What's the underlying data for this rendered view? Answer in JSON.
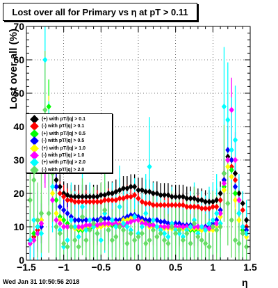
{
  "title": "Lost over all for Primary vs   η at pT > 0.11",
  "ylabel": "Lost over all (%)",
  "xlabel": "η",
  "timestamp": "Wed Jan 31 10:50:56 2018",
  "legend": [
    {
      "label": "(+) with pT/|q| > 0.1",
      "color": "#000000"
    },
    {
      "label": "(-) with pT/|q| > 0.1",
      "color": "#ff0000"
    },
    {
      "label": "(+) with pT/|q| > 0.5",
      "color": "#00ff00"
    },
    {
      "label": "(-) with pT/|q| > 0.5",
      "color": "#0000ff"
    },
    {
      "label": "(+) with pT/|q| > 1.0",
      "color": "#ffff00"
    },
    {
      "label": "(-) with pT/|q| > 1.0",
      "color": "#ff00ff"
    },
    {
      "label": "(+) with pT/|q| > 2.0",
      "color": "#00ffff"
    },
    {
      "label": "(-) with pT/|q| > 2.0",
      "color": "#66dd66"
    }
  ],
  "chart_data": {
    "type": "scatter",
    "title": "Lost over all for Primary vs   η at pT > 0.11",
    "xlabel": "η",
    "ylabel": "Lost over all (%)",
    "xlim": [
      -1.5,
      1.5
    ],
    "ylim": [
      0,
      70
    ],
    "xticks": [
      -1.5,
      -1,
      -0.5,
      0,
      0.5,
      1,
      1.5
    ],
    "xtick_labels": [
      "−1.5",
      "−1",
      "−0.5",
      "0",
      "0.5",
      "1",
      "1.5"
    ],
    "yticks": [
      0,
      10,
      20,
      30,
      40,
      50,
      60,
      70
    ],
    "ytick_labels": [
      "0",
      "10",
      "20",
      "30",
      "40",
      "50",
      "60",
      "70"
    ],
    "grid": true,
    "legend_position": "left-middle",
    "x": [
      -1.45,
      -1.4,
      -1.35,
      -1.3,
      -1.25,
      -1.2,
      -1.15,
      -1.1,
      -1.05,
      -1.0,
      -0.95,
      -0.9,
      -0.85,
      -0.8,
      -0.75,
      -0.7,
      -0.65,
      -0.6,
      -0.55,
      -0.5,
      -0.45,
      -0.4,
      -0.35,
      -0.3,
      -0.25,
      -0.2,
      -0.15,
      -0.1,
      -0.05,
      0.0,
      0.05,
      0.1,
      0.15,
      0.2,
      0.25,
      0.3,
      0.35,
      0.4,
      0.45,
      0.5,
      0.55,
      0.6,
      0.65,
      0.7,
      0.75,
      0.8,
      0.85,
      0.9,
      0.95,
      1.0,
      1.05,
      1.1,
      1.15,
      1.2,
      1.25,
      1.3,
      1.35,
      1.4,
      1.45
    ],
    "series": [
      {
        "name": "(+) with pT/|q| > 0.1",
        "color": "#000000",
        "error_scale": 0.6,
        "values": [
          6,
          7,
          9,
          12,
          38,
          42,
          30,
          24,
          22,
          20,
          19.5,
          19,
          19,
          19,
          19,
          19,
          19,
          19,
          19,
          19.5,
          19.5,
          20,
          20,
          20.5,
          21,
          21.5,
          21.5,
          22,
          22,
          21,
          21,
          20.5,
          20.5,
          20,
          20,
          19.5,
          19.5,
          19.5,
          19,
          19,
          19,
          19,
          18.5,
          18.5,
          18.5,
          18,
          18,
          17.5,
          17.5,
          17.5,
          18,
          20,
          26,
          31,
          30,
          26,
          20,
          17,
          12
        ]
      },
      {
        "name": "(-) with pT/|q| > 0.1",
        "color": "#ff0000",
        "error_scale": 0.6,
        "values": [
          6,
          7,
          9,
          11,
          35,
          40,
          28,
          22,
          20,
          19,
          18,
          18,
          17.5,
          17.5,
          17.5,
          17.5,
          17.5,
          17.5,
          17.5,
          17.5,
          18,
          18,
          18,
          18,
          18.5,
          18.5,
          19,
          19,
          19.5,
          18.5,
          17.5,
          17,
          17,
          16.5,
          16.5,
          16.5,
          16.5,
          16.5,
          16.5,
          16.5,
          16.5,
          16.5,
          16,
          16,
          16,
          16,
          15.5,
          15.5,
          15.5,
          16,
          16,
          18,
          24,
          30,
          28,
          24,
          18,
          15,
          10
        ]
      },
      {
        "name": "(+) with pT/|q| > 0.5",
        "color": "#00ff00",
        "error_scale": 1.0,
        "values": [
          5,
          8,
          10,
          14,
          38,
          46,
          27,
          18,
          13,
          12,
          11,
          10,
          9.5,
          9,
          9,
          9.5,
          9.5,
          10,
          10,
          10.5,
          11,
          11,
          10.5,
          10.5,
          10,
          10.5,
          11,
          12,
          13,
          13,
          12,
          11.5,
          11,
          10.5,
          10,
          10,
          10,
          10,
          9.5,
          9.5,
          9.5,
          9.5,
          9,
          9,
          9,
          9,
          9,
          9,
          10,
          10,
          10,
          14,
          22,
          30,
          27,
          20,
          12,
          9,
          8
        ]
      },
      {
        "name": "(-) with pT/|q| > 0.5",
        "color": "#0000ff",
        "error_scale": 1.0,
        "values": [
          5,
          6,
          8,
          10,
          30,
          36,
          28,
          22,
          16,
          15,
          14,
          13,
          12,
          12,
          12,
          12,
          12,
          12,
          12,
          12.5,
          12.5,
          12.5,
          12,
          12,
          12,
          12.5,
          13,
          13.5,
          13.5,
          13,
          12.5,
          12,
          12,
          12,
          12,
          11.5,
          11.5,
          11,
          11,
          11,
          11,
          10.5,
          10.5,
          10.5,
          10,
          10,
          10,
          10,
          10,
          11,
          12,
          15,
          24,
          33,
          30,
          22,
          14,
          10,
          9
        ]
      },
      {
        "name": "(+) with pT/|q| > 1.0",
        "color": "#ffff00",
        "error_scale": 1.2,
        "values": [
          5,
          6,
          8,
          12,
          35,
          40,
          20,
          14,
          12,
          10,
          10,
          10,
          9.5,
          9.5,
          9.5,
          10,
          10,
          10,
          10,
          10,
          10.5,
          10.5,
          11,
          11,
          11,
          12,
          12,
          12.5,
          13,
          12,
          11.5,
          11,
          10,
          10,
          10,
          9.5,
          9.5,
          9.5,
          9.5,
          9.5,
          9.5,
          9.5,
          9.5,
          9.5,
          9.5,
          9.5,
          9,
          9,
          9,
          9,
          10,
          13,
          21,
          28,
          25,
          18,
          12,
          8,
          7
        ]
      },
      {
        "name": "(-) with pT/|q| > 1.0",
        "color": "#ff00ff",
        "error_scale": 1.2,
        "values": [
          5,
          6,
          8,
          11,
          30,
          30,
          18,
          12,
          11,
          10,
          10,
          10,
          10,
          10,
          10,
          10.5,
          10.5,
          10.5,
          10.5,
          11,
          11,
          11,
          11,
          11,
          10.5,
          10.5,
          11,
          11.5,
          12,
          12,
          11,
          11,
          10.5,
          10.5,
          10,
          10,
          10,
          10,
          10,
          10,
          10,
          10,
          10,
          10,
          10,
          10,
          10,
          9.5,
          9.5,
          10,
          11,
          14,
          23,
          30,
          45,
          30,
          18,
          10,
          8
        ]
      },
      {
        "name": "(+) with pT/|q| > 2.0",
        "color": "#00ffff",
        "error_scale": 2.2,
        "values": [
          6,
          12,
          10,
          8,
          60,
          32,
          22,
          10,
          9,
          4,
          6,
          12,
          10,
          7,
          16,
          9,
          12,
          10,
          8,
          6,
          14,
          9,
          12,
          10,
          16,
          11,
          10,
          9,
          13,
          8,
          10,
          14,
          28,
          12,
          10,
          9,
          8,
          7,
          11,
          9,
          8,
          7,
          9,
          10,
          12,
          8,
          10,
          9,
          11,
          12,
          14,
          11,
          46,
          42,
          33,
          36,
          14,
          10,
          8
        ]
      },
      {
        "name": "(-) with pT/|q| > 2.0",
        "color": "#66dd66",
        "error_scale": 2.2,
        "values": [
          18,
          24,
          12,
          14,
          45,
          14,
          26,
          10,
          8,
          5,
          4,
          10,
          6,
          4,
          13,
          6,
          9,
          11,
          8,
          12,
          15,
          9,
          6,
          7,
          10,
          9,
          5,
          8,
          6,
          7,
          8,
          5,
          6,
          9,
          7,
          8,
          6,
          5,
          10,
          8,
          9,
          6,
          8,
          5,
          11,
          7,
          6,
          5,
          4,
          10,
          9,
          10,
          26,
          17,
          12,
          6,
          5,
          8,
          4
        ]
      }
    ]
  }
}
